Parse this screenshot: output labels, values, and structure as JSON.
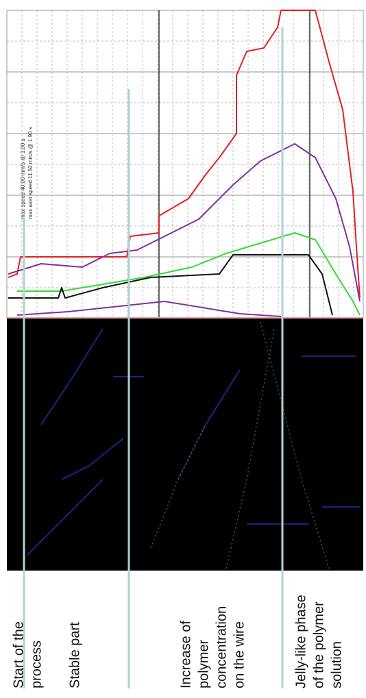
{
  "annotations": {
    "max_speed": "max speed 40.00 mm/s @ 1.00 s",
    "max_aver_speed": "max aver speed 11.50 mm/s @ 1.90 s"
  },
  "labels": [
    {
      "lines": [
        "Start of the",
        "process"
      ]
    },
    {
      "lines": [
        "Stable part"
      ]
    },
    {
      "lines": [
        "Increase of",
        "polymer",
        "concentration",
        "on the wire"
      ]
    },
    {
      "lines": [
        "Jelly-like phase",
        "of the polymer",
        "solution"
      ]
    }
  ]
}
